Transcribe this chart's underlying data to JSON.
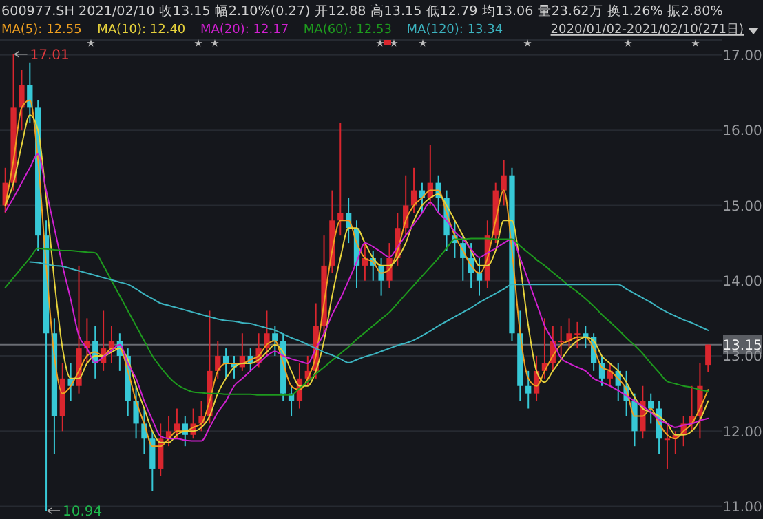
{
  "chart_data": {
    "type": "candlestick",
    "title": "600977.SH 2021/02/10 收13.15 幅2.10%(0.27) 开12.88 高13.15 低12.79 均13.06 量23.62万 换1.26% 振2.80%",
    "categories": [
      null,
      null,
      null,
      null,
      null,
      null,
      null,
      null,
      null,
      null,
      null,
      null,
      null,
      null,
      null,
      null,
      null,
      null,
      null,
      null,
      null,
      null,
      null,
      null,
      null,
      null,
      null,
      null,
      null,
      null,
      null,
      null,
      null,
      null,
      null,
      null,
      null,
      null,
      null,
      null,
      null,
      null,
      null,
      null,
      null,
      null,
      null,
      null,
      null,
      null,
      null,
      null,
      null,
      null,
      null,
      null,
      null,
      null,
      null,
      null,
      null,
      null,
      null,
      null,
      null,
      null,
      null,
      null,
      null,
      null,
      null,
      null,
      null,
      null,
      null,
      null,
      null,
      null,
      null,
      null,
      null,
      null,
      null,
      null,
      null,
      null,
      null
    ],
    "ohlc": [
      [
        15.0,
        15.5,
        14.9,
        15.3
      ],
      [
        15.3,
        17.01,
        15.2,
        16.3
      ],
      [
        16.3,
        16.8,
        16.0,
        16.6
      ],
      [
        16.6,
        16.9,
        16.1,
        16.3
      ],
      [
        16.3,
        16.4,
        14.4,
        14.6
      ],
      [
        14.6,
        14.8,
        10.94,
        13.3
      ],
      [
        13.3,
        13.5,
        11.7,
        12.2
      ],
      [
        12.2,
        12.9,
        12.0,
        12.7
      ],
      [
        12.7,
        12.9,
        12.4,
        12.6
      ],
      [
        12.6,
        14.2,
        12.5,
        13.1
      ],
      [
        13.1,
        13.5,
        12.9,
        13.2
      ],
      [
        13.2,
        13.4,
        12.7,
        12.9
      ],
      [
        12.9,
        13.6,
        12.8,
        13.1
      ],
      [
        13.1,
        13.4,
        12.9,
        13.2
      ],
      [
        13.2,
        13.3,
        12.8,
        13.0
      ],
      [
        13.0,
        13.1,
        12.2,
        12.4
      ],
      [
        12.4,
        12.6,
        11.9,
        12.1
      ],
      [
        12.1,
        12.3,
        11.7,
        11.9
      ],
      [
        11.9,
        12.0,
        11.2,
        11.5
      ],
      [
        11.5,
        12.1,
        11.4,
        11.9
      ],
      [
        11.9,
        12.2,
        11.8,
        12.0
      ],
      [
        12.0,
        12.3,
        11.9,
        12.1
      ],
      [
        12.1,
        12.2,
        11.8,
        11.95
      ],
      [
        11.95,
        12.3,
        11.9,
        12.1
      ],
      [
        12.1,
        12.4,
        12.0,
        12.2
      ],
      [
        12.2,
        13.6,
        12.1,
        12.8
      ],
      [
        12.8,
        13.2,
        12.7,
        13.0
      ],
      [
        13.0,
        13.1,
        12.7,
        12.9
      ],
      [
        12.9,
        13.0,
        12.7,
        12.85
      ],
      [
        12.85,
        13.3,
        12.8,
        13.0
      ],
      [
        13.0,
        13.1,
        12.8,
        12.9
      ],
      [
        12.9,
        13.3,
        12.85,
        13.1
      ],
      [
        13.1,
        13.6,
        13.0,
        13.3
      ],
      [
        13.3,
        13.4,
        13.0,
        13.2
      ],
      [
        13.2,
        13.3,
        12.4,
        12.5
      ],
      [
        12.5,
        12.6,
        12.2,
        12.4
      ],
      [
        12.4,
        12.9,
        12.3,
        12.7
      ],
      [
        12.7,
        13.0,
        12.6,
        12.8
      ],
      [
        12.8,
        13.7,
        12.7,
        13.4
      ],
      [
        13.4,
        14.6,
        13.3,
        14.2
      ],
      [
        14.2,
        15.2,
        14.1,
        14.8
      ],
      [
        14.8,
        16.1,
        14.6,
        14.9
      ],
      [
        14.9,
        15.1,
        14.5,
        14.7
      ],
      [
        14.7,
        14.8,
        13.9,
        14.2
      ],
      [
        14.2,
        14.5,
        14.0,
        14.3
      ],
      [
        14.3,
        14.4,
        14.0,
        14.2
      ],
      [
        14.2,
        14.3,
        13.8,
        14.0
      ],
      [
        14.0,
        14.5,
        13.9,
        14.3
      ],
      [
        14.3,
        14.9,
        14.2,
        14.7
      ],
      [
        14.7,
        15.4,
        14.6,
        15.0
      ],
      [
        15.0,
        15.5,
        14.9,
        15.2
      ],
      [
        15.2,
        15.3,
        14.9,
        15.1
      ],
      [
        15.1,
        15.8,
        15.0,
        15.3
      ],
      [
        15.3,
        15.4,
        14.9,
        15.1
      ],
      [
        15.1,
        15.2,
        14.4,
        14.6
      ],
      [
        14.6,
        14.8,
        14.3,
        14.5
      ],
      [
        14.5,
        14.6,
        14.0,
        14.3
      ],
      [
        14.3,
        14.5,
        13.9,
        14.1
      ],
      [
        14.1,
        14.3,
        13.8,
        14.0
      ],
      [
        14.0,
        14.8,
        13.9,
        14.6
      ],
      [
        14.6,
        15.3,
        14.5,
        15.2
      ],
      [
        15.2,
        15.6,
        15.0,
        15.4
      ],
      [
        15.4,
        15.5,
        13.2,
        13.3
      ],
      [
        13.3,
        13.6,
        12.4,
        12.6
      ],
      [
        12.6,
        12.8,
        12.3,
        12.5
      ],
      [
        12.5,
        13.0,
        12.4,
        12.8
      ],
      [
        12.8,
        13.5,
        12.7,
        12.9
      ],
      [
        12.9,
        13.4,
        12.8,
        13.2
      ],
      [
        13.2,
        13.4,
        13.0,
        13.2
      ],
      [
        13.2,
        13.5,
        13.1,
        13.3
      ],
      [
        13.3,
        13.45,
        13.1,
        13.3
      ],
      [
        13.3,
        13.4,
        13.1,
        13.25
      ],
      [
        13.25,
        13.3,
        12.8,
        12.9
      ],
      [
        12.9,
        13.0,
        12.6,
        12.7
      ],
      [
        12.7,
        12.9,
        12.6,
        12.8
      ],
      [
        12.8,
        12.9,
        12.4,
        12.6
      ],
      [
        12.6,
        12.8,
        12.2,
        12.4
      ],
      [
        12.4,
        12.5,
        11.8,
        12.0
      ],
      [
        12.0,
        12.6,
        11.9,
        12.4
      ],
      [
        12.4,
        12.5,
        12.1,
        12.3
      ],
      [
        12.3,
        12.4,
        11.7,
        11.9
      ],
      [
        11.9,
        12.1,
        11.5,
        11.9
      ],
      [
        11.9,
        12.0,
        11.7,
        11.95
      ],
      [
        11.95,
        12.2,
        11.8,
        12.1
      ],
      [
        12.1,
        12.6,
        12.0,
        12.2
      ],
      [
        12.2,
        12.9,
        11.9,
        12.6
      ],
      [
        12.88,
        13.15,
        12.79,
        13.15
      ]
    ],
    "colors": [
      "#d9262e",
      "#d9262e",
      "#d9262e",
      "#37c8d6",
      "#37c8d6",
      "#37c8d6",
      "#37c8d6",
      "#d9262e",
      "#37c8d6",
      "#d9262e",
      "#d9262e",
      "#37c8d6",
      "#d9262e",
      "#d9262e",
      "#37c8d6",
      "#37c8d6",
      "#37c8d6",
      "#37c8d6",
      "#37c8d6",
      "#d9262e",
      "#d9262e",
      "#d9262e",
      "#37c8d6",
      "#d9262e",
      "#d9262e",
      "#d9262e",
      "#d9262e",
      "#37c8d6",
      "#37c8d6",
      "#d9262e",
      "#37c8d6",
      "#d9262e",
      "#d9262e",
      "#37c8d6",
      "#37c8d6",
      "#37c8d6",
      "#d9262e",
      "#d9262e",
      "#d9262e",
      "#d9262e",
      "#d9262e",
      "#d9262e",
      "#37c8d6",
      "#37c8d6",
      "#d9262e",
      "#37c8d6",
      "#37c8d6",
      "#d9262e",
      "#d9262e",
      "#d9262e",
      "#d9262e",
      "#37c8d6",
      "#d9262e",
      "#37c8d6",
      "#37c8d6",
      "#37c8d6",
      "#37c8d6",
      "#37c8d6",
      "#37c8d6",
      "#d9262e",
      "#d9262e",
      "#d9262e",
      "#37c8d6",
      "#37c8d6",
      "#37c8d6",
      "#d9262e",
      "#d9262e",
      "#d9262e",
      "#d9262e",
      "#d9262e",
      "#d9262e",
      "#37c8d6",
      "#37c8d6",
      "#37c8d6",
      "#d9262e",
      "#37c8d6",
      "#37c8d6",
      "#37c8d6",
      "#d9262e",
      "#37c8d6",
      "#37c8d6",
      "#d9262e",
      "#d9262e",
      "#d9262e",
      "#d9262e",
      "#d9262e",
      "#d9262e"
    ],
    "series": [
      {
        "type": "line",
        "name": "MA(5): 12.55",
        "color": "#f0a020",
        "values": [
          15.0,
          15.6,
          16.3,
          16.4,
          15.6,
          14.2,
          13.0,
          12.5,
          12.6,
          12.8,
          13.0,
          13.05,
          13.0,
          13.1,
          13.1,
          12.8,
          12.4,
          12.1,
          11.8,
          11.8,
          11.9,
          12.0,
          12.0,
          12.05,
          12.1,
          12.4,
          12.8,
          12.9,
          12.9,
          12.9,
          12.95,
          13.0,
          13.15,
          13.2,
          12.9,
          12.6,
          12.55,
          12.7,
          13.0,
          13.7,
          14.4,
          14.8,
          14.8,
          14.5,
          14.3,
          14.25,
          14.1,
          14.15,
          14.4,
          14.8,
          15.0,
          15.1,
          15.2,
          15.2,
          14.9,
          14.6,
          14.4,
          14.2,
          14.1,
          14.3,
          14.8,
          15.2,
          14.4,
          13.3,
          12.7,
          12.6,
          12.8,
          13.0,
          13.15,
          13.2,
          13.25,
          13.25,
          13.1,
          12.85,
          12.8,
          12.7,
          12.55,
          12.2,
          12.2,
          12.3,
          12.1,
          11.95,
          11.9,
          12.0,
          12.1,
          12.3,
          12.55
        ]
      },
      {
        "type": "line",
        "name": "MA(10): 12.40",
        "color": "#e6d23c",
        "values": [
          15.0,
          15.3,
          15.8,
          16.2,
          16.0,
          15.1,
          14.0,
          13.1,
          12.7,
          12.7,
          12.9,
          13.0,
          13.0,
          13.05,
          13.1,
          12.95,
          12.6,
          12.3,
          12.0,
          11.85,
          11.85,
          11.95,
          12.0,
          12.0,
          12.05,
          12.2,
          12.5,
          12.7,
          12.85,
          12.9,
          12.9,
          12.95,
          13.05,
          13.15,
          13.05,
          12.8,
          12.6,
          12.6,
          12.8,
          13.2,
          13.8,
          14.3,
          14.7,
          14.7,
          14.5,
          14.3,
          14.2,
          14.2,
          14.3,
          14.5,
          14.8,
          15.0,
          15.1,
          15.15,
          15.0,
          14.8,
          14.6,
          14.4,
          14.2,
          14.2,
          14.4,
          14.8,
          14.8,
          14.2,
          13.4,
          12.8,
          12.65,
          12.8,
          12.95,
          13.1,
          13.2,
          13.25,
          13.2,
          13.0,
          12.9,
          12.8,
          12.65,
          12.45,
          12.3,
          12.25,
          12.2,
          12.1,
          11.95,
          11.95,
          12.0,
          12.15,
          12.4
        ]
      },
      {
        "type": "line",
        "name": "MA(20): 12.17",
        "color": "#d020d0",
        "values": [
          14.92,
          15.1,
          15.3,
          15.5,
          15.68,
          15.2,
          14.7,
          14.2,
          13.75,
          13.27,
          13.1,
          12.91,
          12.99,
          13.07,
          13.15,
          12.9,
          12.7,
          12.4,
          12.15,
          11.93,
          11.9,
          11.9,
          11.88,
          11.87,
          11.87,
          12.05,
          12.25,
          12.4,
          12.6,
          12.7,
          12.8,
          12.9,
          13.0,
          13.06,
          13.0,
          12.96,
          12.93,
          12.9,
          13.1,
          13.3,
          13.55,
          13.76,
          14.0,
          14.25,
          14.5,
          14.45,
          14.38,
          14.31,
          14.45,
          14.6,
          14.75,
          14.9,
          15.04,
          14.9,
          14.8,
          14.65,
          14.55,
          14.42,
          14.31,
          14.37,
          14.43,
          14.5,
          14.55,
          14.3,
          14.0,
          13.7,
          13.4,
          13.2,
          12.97,
          12.9,
          12.85,
          12.8,
          12.7,
          12.65,
          12.6,
          12.54,
          12.47,
          12.4,
          12.33,
          12.25,
          12.15,
          12.1,
          12.05,
          12.08,
          12.1,
          12.14,
          12.17
        ]
      },
      {
        "type": "line",
        "name": "MA(60): 12.53",
        "color": "#1e9a1e",
        "values": [
          13.91,
          14.04,
          14.17,
          14.3,
          14.43,
          14.42,
          14.41,
          14.4,
          14.4,
          14.39,
          14.38,
          14.37,
          14.2,
          14.0,
          13.8,
          13.6,
          13.4,
          13.2,
          13.0,
          12.85,
          12.72,
          12.62,
          12.56,
          12.52,
          12.51,
          12.5,
          12.5,
          12.49,
          12.49,
          12.49,
          12.49,
          12.48,
          12.48,
          12.48,
          12.48,
          12.48,
          12.57,
          12.66,
          12.76,
          12.85,
          12.94,
          13.03,
          13.12,
          13.22,
          13.31,
          13.4,
          13.49,
          13.58,
          13.7,
          13.82,
          13.94,
          14.06,
          14.18,
          14.3,
          14.43,
          14.55,
          14.55,
          14.56,
          14.56,
          14.56,
          14.55,
          14.55,
          14.55,
          14.46,
          14.37,
          14.28,
          14.2,
          14.11,
          14.02,
          13.93,
          13.85,
          13.76,
          13.66,
          13.55,
          13.45,
          13.35,
          13.24,
          13.14,
          13.03,
          12.9,
          12.78,
          12.66,
          12.63,
          12.6,
          12.58,
          12.55,
          12.53
        ]
      },
      {
        "type": "line",
        "name": "MA(120): 13.34",
        "color": "#3cb4c0",
        "values": [
          null,
          null,
          null,
          14.25,
          14.24,
          14.22,
          14.2,
          14.19,
          14.16,
          14.13,
          14.1,
          14.07,
          14.04,
          14.01,
          13.98,
          13.95,
          13.89,
          13.82,
          13.76,
          13.7,
          13.67,
          13.64,
          13.61,
          13.58,
          13.55,
          13.52,
          13.49,
          13.47,
          13.46,
          13.44,
          13.43,
          13.4,
          13.37,
          13.34,
          13.29,
          13.24,
          13.2,
          13.15,
          13.1,
          13.05,
          13.01,
          12.96,
          12.91,
          12.95,
          12.99,
          13.02,
          13.06,
          13.1,
          13.14,
          13.17,
          13.21,
          13.27,
          13.33,
          13.4,
          13.46,
          13.52,
          13.58,
          13.64,
          13.71,
          13.77,
          13.83,
          13.89,
          13.95,
          13.95,
          13.95,
          13.95,
          13.95,
          13.95,
          13.95,
          13.95,
          13.95,
          13.95,
          13.95,
          13.95,
          13.95,
          13.95,
          13.89,
          13.83,
          13.77,
          13.71,
          13.64,
          13.58,
          13.53,
          13.48,
          13.44,
          13.39,
          13.34
        ]
      }
    ],
    "ylim": [
      10.85,
      17.2
    ],
    "yticks": [
      {
        "value": 11,
        "label": "11.00"
      },
      {
        "value": 12,
        "label": "12.00"
      },
      {
        "value": 13,
        "label": "13.00"
      },
      {
        "value": 14,
        "label": "14.00"
      },
      {
        "value": 15,
        "label": "15.00"
      },
      {
        "value": 16,
        "label": "16.00"
      },
      {
        "value": 17,
        "label": "17.00"
      }
    ],
    "grid": "y",
    "tick_labels": "y",
    "legend": "top left",
    "ref_lines": [
      {
        "axis": "y",
        "value": 13.15,
        "label": "13.15",
        "color": "#6a6d73"
      }
    ],
    "annotations": [
      "2020/01/02-2021/02/10(271日)",
      "17.01",
      "10.94"
    ]
  }
}
